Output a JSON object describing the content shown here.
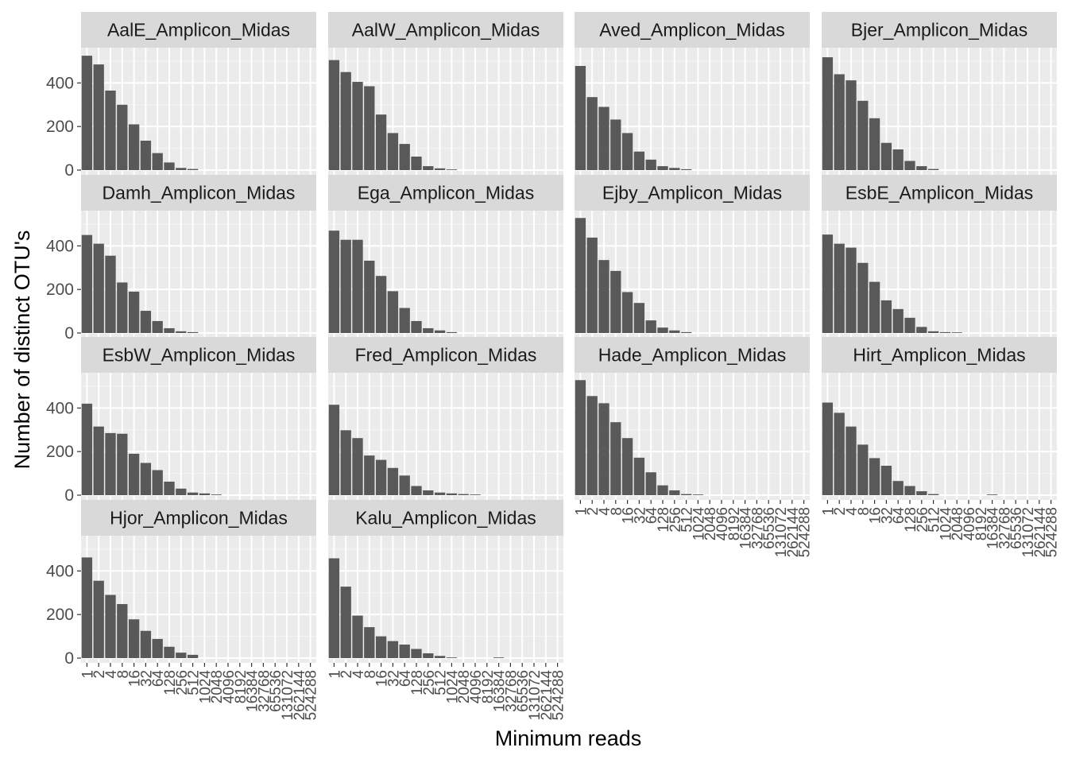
{
  "chart_data": {
    "type": "bar",
    "xlabel": "Minimum reads",
    "ylabel": "Number of distinct OTU's",
    "ylim": [
      0,
      540
    ],
    "y_ticks": [
      0,
      200,
      400
    ],
    "categories": [
      "1",
      "2",
      "4",
      "8",
      "16",
      "32",
      "64",
      "128",
      "256",
      "512",
      "1024",
      "2048",
      "4096",
      "8192",
      "16384",
      "32768",
      "65536",
      "131072",
      "262144",
      "524288"
    ],
    "grid": "on",
    "legend": "none",
    "colors": {
      "bar": "#595959",
      "panel": "#ebebeb",
      "strip": "#d9d9d9",
      "grid_major": "#ffffff",
      "grid_minor": "#f5f5f5"
    },
    "facets": [
      {
        "name": "AalE_Amplicon_Midas",
        "values": [
          525,
          485,
          365,
          300,
          210,
          135,
          78,
          35,
          10,
          5,
          0,
          0,
          0,
          0,
          0,
          0,
          0,
          0,
          0,
          0
        ]
      },
      {
        "name": "AalW_Amplicon_Midas",
        "values": [
          505,
          450,
          405,
          385,
          255,
          170,
          120,
          62,
          18,
          8,
          3,
          0,
          0,
          0,
          0,
          0,
          0,
          0,
          0,
          0
        ]
      },
      {
        "name": "Aved_Amplicon_Midas",
        "values": [
          478,
          335,
          290,
          232,
          170,
          85,
          48,
          18,
          10,
          4,
          0,
          0,
          0,
          0,
          0,
          0,
          0,
          0,
          0,
          0
        ]
      },
      {
        "name": "Bjer_Amplicon_Midas",
        "values": [
          518,
          440,
          412,
          318,
          238,
          125,
          95,
          42,
          18,
          5,
          0,
          0,
          0,
          0,
          0,
          0,
          0,
          0,
          0,
          0
        ]
      },
      {
        "name": "Damh_Amplicon_Midas",
        "values": [
          450,
          410,
          355,
          232,
          190,
          102,
          55,
          22,
          8,
          4,
          0,
          0,
          0,
          0,
          0,
          0,
          0,
          0,
          0,
          0
        ]
      },
      {
        "name": "Ega_Amplicon_Midas",
        "values": [
          470,
          428,
          428,
          332,
          262,
          192,
          115,
          55,
          22,
          12,
          4,
          0,
          0,
          0,
          0,
          0,
          0,
          0,
          0,
          0
        ]
      },
      {
        "name": "Ejby_Amplicon_Midas",
        "values": [
          528,
          438,
          335,
          285,
          188,
          138,
          58,
          25,
          12,
          4,
          0,
          0,
          0,
          0,
          0,
          0,
          0,
          0,
          0,
          0
        ]
      },
      {
        "name": "EsbE_Amplicon_Midas",
        "values": [
          452,
          410,
          392,
          322,
          235,
          150,
          110,
          70,
          28,
          8,
          4,
          3,
          0,
          0,
          0,
          0,
          0,
          0,
          0,
          0
        ]
      },
      {
        "name": "EsbW_Amplicon_Midas",
        "values": [
          420,
          315,
          285,
          282,
          190,
          148,
          115,
          62,
          30,
          12,
          8,
          3,
          0,
          0,
          0,
          0,
          0,
          0,
          0,
          0
        ]
      },
      {
        "name": "Fred_Amplicon_Midas",
        "values": [
          415,
          298,
          262,
          182,
          162,
          125,
          90,
          42,
          22,
          12,
          8,
          5,
          3,
          0,
          0,
          0,
          0,
          0,
          0,
          0
        ]
      },
      {
        "name": "Hade_Amplicon_Midas",
        "values": [
          528,
          455,
          422,
          335,
          262,
          172,
          105,
          45,
          22,
          5,
          3,
          0,
          0,
          0,
          0,
          0,
          0,
          0,
          0,
          0
        ]
      },
      {
        "name": "Hirt_Amplicon_Midas",
        "values": [
          425,
          378,
          315,
          232,
          170,
          135,
          65,
          42,
          18,
          5,
          0,
          0,
          0,
          0,
          3,
          0,
          0,
          0,
          0,
          0
        ]
      },
      {
        "name": "Hjor_Amplicon_Midas",
        "values": [
          462,
          355,
          290,
          248,
          178,
          125,
          88,
          52,
          25,
          15,
          0,
          0,
          0,
          0,
          0,
          0,
          0,
          0,
          0,
          0
        ]
      },
      {
        "name": "Kalu_Amplicon_Midas",
        "values": [
          458,
          328,
          195,
          142,
          100,
          78,
          62,
          42,
          22,
          10,
          3,
          0,
          0,
          0,
          3,
          0,
          0,
          0,
          0,
          0
        ]
      }
    ]
  }
}
